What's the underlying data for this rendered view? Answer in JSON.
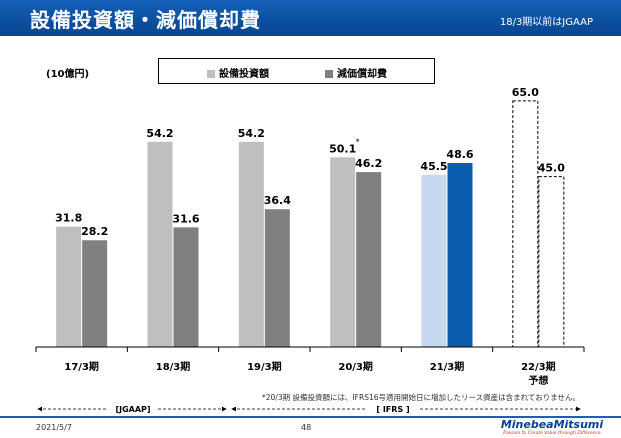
{
  "header": {
    "title": "設備投資額・減価償却費",
    "gaap_note": "18/3期以前はJGAAP"
  },
  "unit_label": "(10億円)",
  "legend": {
    "capex": "設備投資額",
    "depreciation": "減価償却費"
  },
  "chart_data": {
    "type": "bar",
    "categories": [
      "17/3期",
      "18/3期",
      "19/3期",
      "20/3期",
      "21/3期",
      "22/3期"
    ],
    "category_sublabels": [
      "",
      "",
      "",
      "",
      "",
      "予想"
    ],
    "series": [
      {
        "name": "設備投資額",
        "values": [
          31.8,
          54.2,
          54.2,
          50.1,
          45.5,
          65.0
        ],
        "labels": [
          "31.8",
          "54.2",
          "54.2",
          "50.1",
          "45.5",
          "65.0"
        ]
      },
      {
        "name": "減価償却費",
        "values": [
          28.2,
          31.6,
          36.4,
          46.2,
          48.6,
          45.0
        ],
        "labels": [
          "28.2",
          "31.6",
          "36.4",
          "46.2",
          "48.6",
          "45.0"
        ]
      }
    ],
    "annotation": {
      "category": "20/3期",
      "series": "設備投資額",
      "text": "*"
    },
    "forecast_category": "22/3期",
    "ylim": [
      0,
      70
    ],
    "grid": false,
    "legend_position": "top-center",
    "colors": {
      "capex": "#bfbfbf",
      "depreciation": "#7f7f7f",
      "capex_ifrs": "#c5d9f1",
      "depreciation_ifrs": "#0b5ead",
      "forecast_border": "#000000"
    }
  },
  "footnote": "*20/3期 設備投資額には、IFRS16号適用開始日に増加したリース資産は含まれておりません。",
  "periods": {
    "jgaap": "[JGAAP]",
    "ifrs": "[ IFRS ]"
  },
  "footer": {
    "date": "2021/5/7",
    "page_number": "48",
    "logo_name": "MinebeaMitsumi",
    "logo_tagline": "Passion to Create Value through Difference"
  },
  "colors": {
    "header_bg": "#0b4f9e",
    "footer_line": "#1560b8"
  }
}
